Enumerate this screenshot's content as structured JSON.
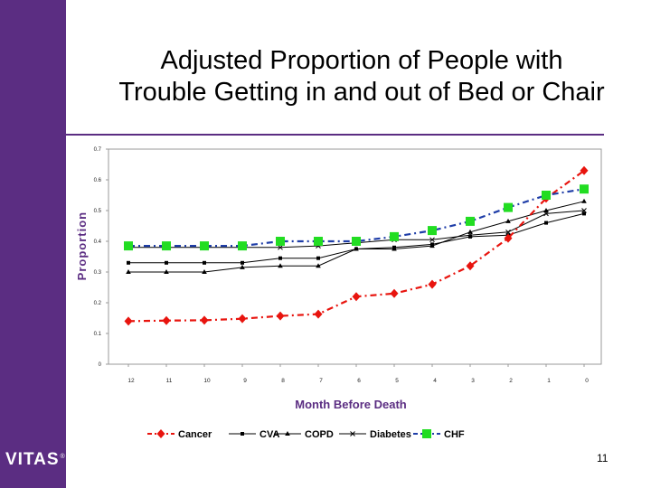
{
  "slide": {
    "title_line1": "Adjusted Proportion of People with",
    "title_line2": "Trouble Getting in and out of Bed or Chair",
    "logo": "VITAS",
    "logo_mark": "®",
    "page_number": "11"
  },
  "colors": {
    "sidebar": "#5b2d82",
    "rule": "#5b2d82",
    "axis_title": "#5b2d82"
  },
  "chart_data": {
    "type": "line",
    "title": "",
    "xlabel": "Month Before Death",
    "ylabel": "Proportion",
    "categories": [
      "12",
      "11",
      "10",
      "9",
      "8",
      "7",
      "6",
      "5",
      "4",
      "3",
      "2",
      "1",
      "0"
    ],
    "yticks": [
      "0",
      "0.1",
      "0.2",
      "0.3",
      "0.4",
      "0.5",
      "0.6",
      "0.7"
    ],
    "ylim": [
      0,
      0.7
    ],
    "grid": false,
    "legend_position": "bottom",
    "series": [
      {
        "name": "Cancer",
        "color": "#e8140e",
        "marker": "diamond",
        "dash": "dash-dot",
        "values": [
          0.14,
          0.142,
          0.143,
          0.148,
          0.157,
          0.163,
          0.22,
          0.23,
          0.26,
          0.32,
          0.41,
          0.54,
          0.63
        ]
      },
      {
        "name": "CVA",
        "color": "#000000",
        "marker": "square",
        "dash": "solid",
        "values": [
          0.33,
          0.33,
          0.33,
          0.33,
          0.345,
          0.345,
          0.375,
          0.38,
          0.39,
          0.415,
          0.42,
          0.46,
          0.49
        ]
      },
      {
        "name": "COPD",
        "color": "#000000",
        "marker": "triangle",
        "dash": "solid",
        "values": [
          0.3,
          0.3,
          0.3,
          0.315,
          0.32,
          0.32,
          0.375,
          0.375,
          0.385,
          0.43,
          0.465,
          0.5,
          0.53
        ]
      },
      {
        "name": "Diabetes",
        "color": "#000000",
        "marker": "x",
        "dash": "solid",
        "values": [
          0.38,
          0.38,
          0.38,
          0.38,
          0.38,
          0.385,
          0.395,
          0.405,
          0.405,
          0.42,
          0.43,
          0.49,
          0.5
        ]
      },
      {
        "name": "CHF",
        "color": "#1f3ea8",
        "marker": "green-square",
        "marker_color": "#22dd22",
        "dash": "dash-dot",
        "values": [
          0.385,
          0.385,
          0.385,
          0.385,
          0.4,
          0.4,
          0.4,
          0.415,
          0.435,
          0.465,
          0.51,
          0.55,
          0.57
        ]
      }
    ]
  }
}
